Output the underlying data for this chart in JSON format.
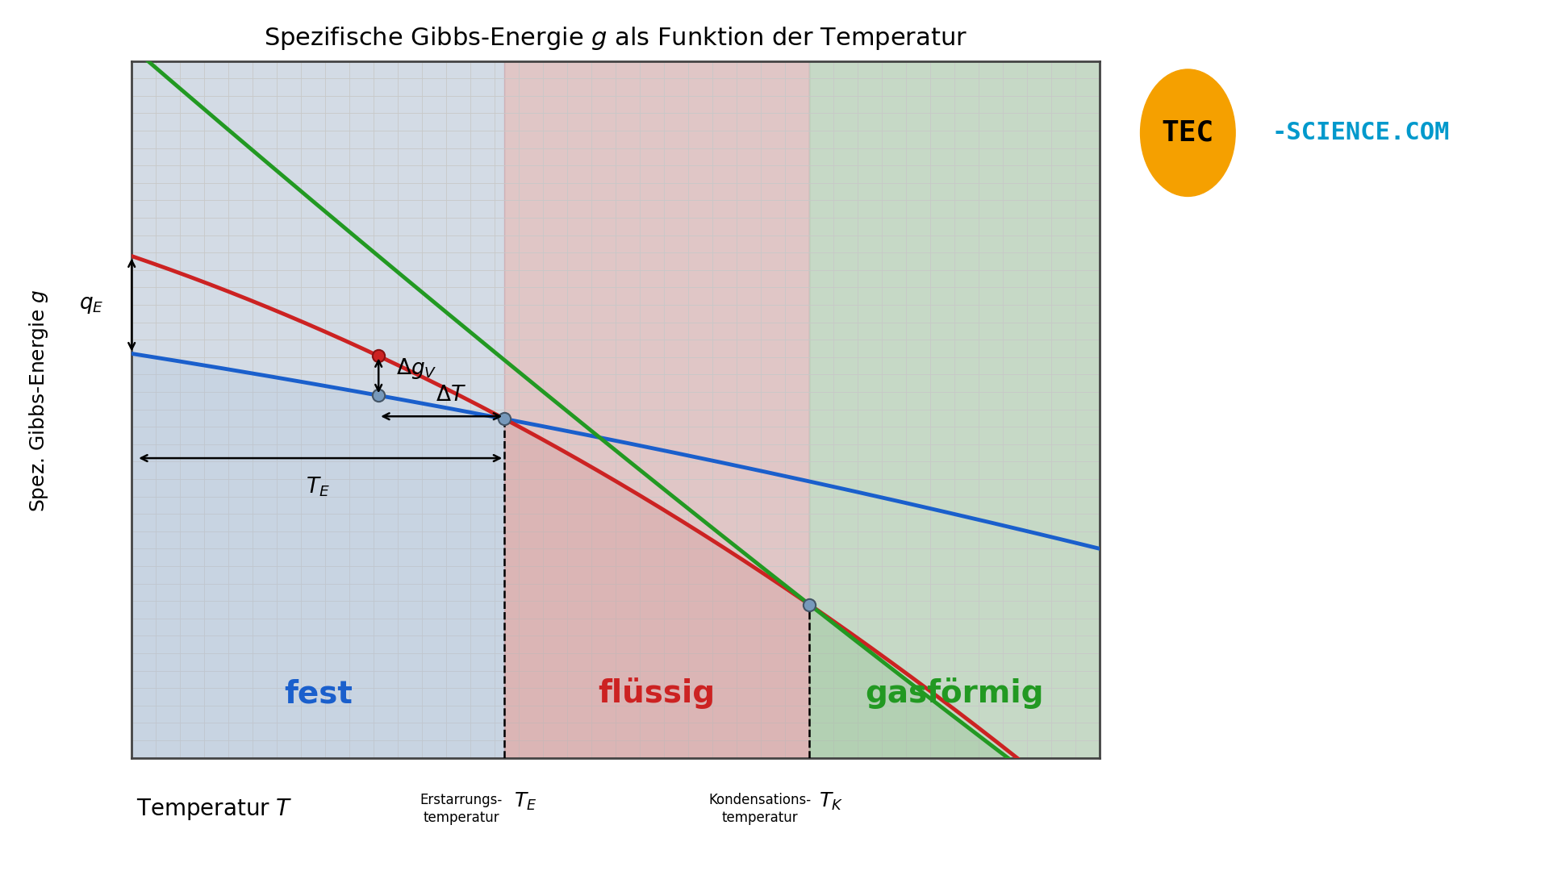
{
  "title": "Spezifische Gibbs-Energie $g$ als Funktion der Temperatur",
  "xlabel": "Temperatur $T$",
  "ylabel": "Spez. Gibbs-Energie $g$",
  "bg_color": "#ffffff",
  "plot_bg_color": "#ebebeb",
  "grid_color": "#c8c8c8",
  "T_E": 0.385,
  "T_K": 0.7,
  "T_sc": 0.255,
  "solid_color": "#1a5fcc",
  "liquid_color": "#cc2222",
  "gas_color": "#229922",
  "solid_fill": "#b0c4de",
  "liquid_fill": "#d09090",
  "gas_fill": "#90c090",
  "solid_fill_alpha": 0.55,
  "liquid_fill_alpha": 0.55,
  "gas_fill_alpha": 0.55,
  "annotation_color": "#000000",
  "marker_color": "#7799bb",
  "marker_edge": "#445566",
  "red_marker_color": "#cc2222",
  "red_marker_edge": "#881111",
  "solid_g0": 0.58,
  "liquid_g0": 0.72,
  "gas_g0": 1.02,
  "solid_g1": 0.3,
  "lw": 3.5
}
